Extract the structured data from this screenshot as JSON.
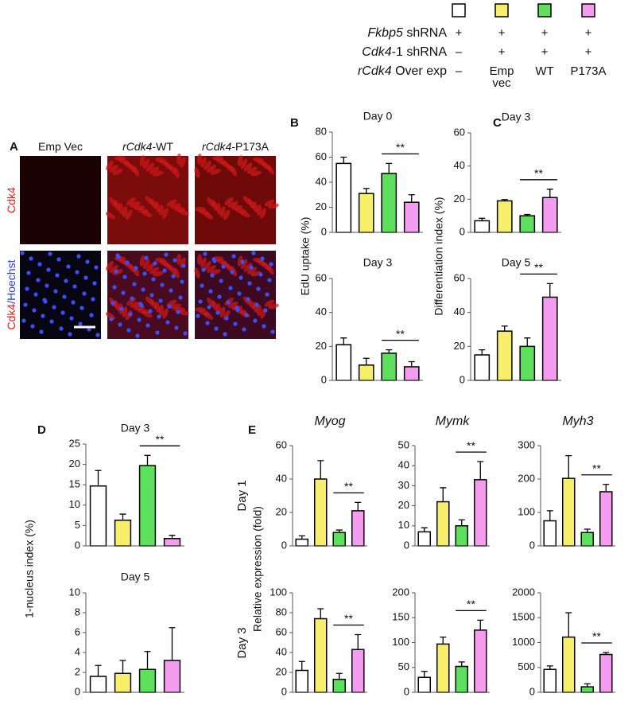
{
  "conditions": {
    "colors": [
      "#ffffff",
      "#f7ef6a",
      "#5ee05e",
      "#f49cf0"
    ],
    "rows": [
      {
        "label": [
          {
            "text": "Fkbp5",
            "italic": true
          },
          {
            "text": " shRNA"
          }
        ],
        "marks": [
          "+",
          "+",
          "+",
          "+"
        ]
      },
      {
        "label": [
          {
            "text": "Cdk4",
            "italic": true
          },
          {
            "text": "-1 shRNA"
          }
        ],
        "marks": [
          "–",
          "+",
          "+",
          "+"
        ]
      },
      {
        "label": [
          {
            "text": "rCdk4",
            "italic": true
          },
          {
            "text": " Over exp"
          }
        ],
        "marks": [
          "–",
          "Emp vec",
          "WT",
          "P173A"
        ]
      }
    ]
  },
  "panel_a": {
    "label": "A",
    "columns": [
      [
        {
          "text": "Emp Vec"
        }
      ],
      [
        {
          "text": "rCdk4",
          "italic": true
        },
        {
          "text": "-WT"
        }
      ],
      [
        {
          "text": "rCdk4",
          "italic": true
        },
        {
          "text": "-P173A"
        }
      ]
    ],
    "rows": [
      [
        {
          "text": "Cdk4",
          "color": "#e02020"
        }
      ],
      [
        {
          "text": "Cdk4",
          "color": "#e02020"
        },
        {
          "text": "/Hoechst",
          "color": "#2a3ce0"
        }
      ]
    ]
  },
  "chart_data": [
    {
      "type": "bar",
      "panel_label": "B",
      "title": "Day 0",
      "ylabel": "EdU uptake (%)",
      "categories": [
        null,
        null,
        null,
        null
      ],
      "values": [
        55,
        31,
        47,
        24
      ],
      "errors": [
        5,
        4,
        8,
        6
      ],
      "ylim": [
        0,
        80
      ],
      "yticks": [
        0,
        20,
        40,
        60,
        80
      ],
      "annotation": "**"
    },
    {
      "type": "bar",
      "title": "Day 3",
      "categories": [
        null,
        null,
        null,
        null
      ],
      "values": [
        21,
        9,
        16,
        8
      ],
      "errors": [
        4,
        4,
        2,
        3
      ],
      "ylim": [
        0,
        60
      ],
      "yticks": [
        0,
        20,
        40,
        60
      ],
      "annotation": "**"
    },
    {
      "type": "bar",
      "panel_label": "C",
      "title": "Day 3",
      "ylabel": "Differentiation index (%)",
      "categories": [
        null,
        null,
        null,
        null
      ],
      "values": [
        7,
        19,
        10,
        21
      ],
      "errors": [
        1.5,
        0.8,
        0.8,
        5
      ],
      "ylim": [
        0,
        60
      ],
      "yticks": [
        0,
        20,
        40,
        60
      ],
      "annotation": "**"
    },
    {
      "type": "bar",
      "title": "Day 5",
      "categories": [
        null,
        null,
        null,
        null
      ],
      "values": [
        15,
        29,
        20,
        49
      ],
      "errors": [
        3,
        3,
        5,
        8
      ],
      "ylim": [
        0,
        60
      ],
      "yticks": [
        0,
        20,
        40,
        60
      ],
      "annotation": "**"
    },
    {
      "type": "bar",
      "panel_label": "D",
      "title": "Day 3",
      "ylabel": "1-nucleus index (%)",
      "categories": [
        null,
        null,
        null,
        null
      ],
      "values": [
        14.7,
        6.3,
        19.7,
        1.8
      ],
      "errors": [
        3.8,
        1.5,
        2.5,
        0.8
      ],
      "ylim": [
        0,
        25
      ],
      "yticks": [
        0,
        5,
        10,
        15,
        20,
        25
      ],
      "annotation": "**"
    },
    {
      "type": "bar",
      "title": "Day 5",
      "categories": [
        null,
        null,
        null,
        null
      ],
      "values": [
        1.6,
        1.9,
        2.3,
        3.2
      ],
      "errors": [
        1.1,
        1.3,
        1.8,
        3.3
      ],
      "ylim": [
        0,
        10
      ],
      "yticks": [
        0,
        2,
        4,
        6,
        8,
        10
      ]
    },
    {
      "type": "bar",
      "panel_label": "E",
      "title": "Myog",
      "row_label": "Day 1",
      "ylabel": "Relative expression (fold)",
      "categories": [
        null,
        null,
        null,
        null
      ],
      "values": [
        4,
        40,
        8,
        21
      ],
      "errors": [
        2,
        11,
        1.5,
        5
      ],
      "ylim": [
        0,
        60
      ],
      "yticks": [
        0,
        20,
        40,
        60
      ],
      "annotation": "**"
    },
    {
      "type": "bar",
      "title": "Mymk",
      "categories": [
        null,
        null,
        null,
        null
      ],
      "values": [
        7,
        22,
        10,
        33
      ],
      "errors": [
        2,
        7,
        3,
        9
      ],
      "ylim": [
        0,
        50
      ],
      "yticks": [
        0,
        10,
        20,
        30,
        40,
        50
      ],
      "annotation": "**"
    },
    {
      "type": "bar",
      "title": "Myh3",
      "categories": [
        null,
        null,
        null,
        null
      ],
      "values": [
        75,
        202,
        40,
        162
      ],
      "errors": [
        30,
        68,
        10,
        22
      ],
      "ylim": [
        0,
        300
      ],
      "yticks": [
        0,
        100,
        200,
        300
      ],
      "annotation": "**"
    },
    {
      "type": "bar",
      "row_label": "Day 3",
      "categories": [
        null,
        null,
        null,
        null
      ],
      "values": [
        22,
        74,
        13,
        43
      ],
      "errors": [
        9,
        10,
        6,
        15
      ],
      "ylim": [
        0,
        100
      ],
      "yticks": [
        0,
        20,
        40,
        60,
        80,
        100
      ],
      "annotation": "**"
    },
    {
      "type": "bar",
      "categories": [
        null,
        null,
        null,
        null
      ],
      "values": [
        30,
        97,
        52,
        125
      ],
      "errors": [
        12,
        14,
        9,
        20
      ],
      "ylim": [
        0,
        200
      ],
      "yticks": [
        0,
        50,
        100,
        150,
        200
      ],
      "annotation": "**"
    },
    {
      "type": "bar",
      "categories": [
        null,
        null,
        null,
        null
      ],
      "values": [
        460,
        1110,
        110,
        760
      ],
      "errors": [
        70,
        490,
        60,
        40
      ],
      "ylim": [
        0,
        2000
      ],
      "yticks": [
        0,
        500,
        1000,
        1500,
        2000
      ],
      "annotation": "**"
    }
  ]
}
